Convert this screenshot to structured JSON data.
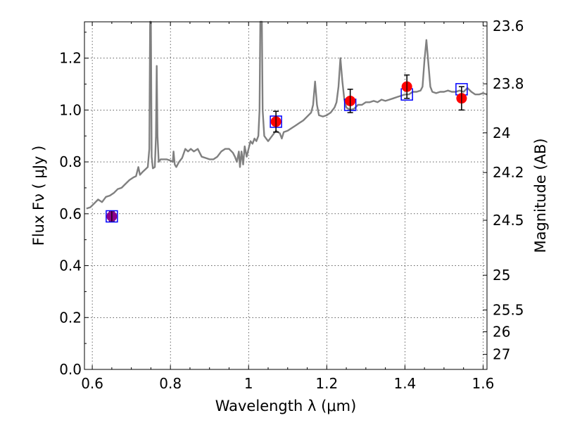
{
  "chart_data": {
    "type": "line",
    "title": "",
    "xlabel": "Wavelength  λ (μm)",
    "ylabel": "Flux  Fν  ( μJy )",
    "ylabel_right": "Magnitude (AB)",
    "xlim": [
      0.58,
      1.61
    ],
    "ylim": [
      0.0,
      1.34
    ],
    "grid": true,
    "x_ticks": [
      0.6,
      0.8,
      1.0,
      1.2,
      1.4,
      1.6
    ],
    "x_tick_labels": [
      "0.6",
      "0.8",
      "1",
      "1.2",
      "1.4",
      "1.6"
    ],
    "y_ticks": [
      0.0,
      0.2,
      0.4,
      0.6,
      0.8,
      1.0,
      1.2
    ],
    "y_tick_labels": [
      "0.0",
      "0.2",
      "0.4",
      "0.6",
      "0.8",
      "1.0",
      "1.2"
    ],
    "right_ticks": [
      {
        "mag": "23.6",
        "flux": 1.324
      },
      {
        "mag": "23.8",
        "flux": 1.101
      },
      {
        "mag": "24",
        "flux": 0.912
      },
      {
        "mag": "24.2",
        "flux": 0.759
      },
      {
        "mag": "24.5",
        "flux": 0.575
      },
      {
        "mag": "25",
        "flux": 0.363
      },
      {
        "mag": "25.5",
        "flux": 0.229
      },
      {
        "mag": "26",
        "flux": 0.145
      },
      {
        "mag": "27",
        "flux": 0.058
      }
    ],
    "series": [
      {
        "role": "model-spectrum",
        "color": "#808080",
        "points": [
          [
            0.585,
            0.62
          ],
          [
            0.595,
            0.625
          ],
          [
            0.605,
            0.64
          ],
          [
            0.615,
            0.655
          ],
          [
            0.625,
            0.645
          ],
          [
            0.635,
            0.665
          ],
          [
            0.645,
            0.67
          ],
          [
            0.655,
            0.68
          ],
          [
            0.665,
            0.695
          ],
          [
            0.675,
            0.7
          ],
          [
            0.685,
            0.715
          ],
          [
            0.695,
            0.73
          ],
          [
            0.705,
            0.74
          ],
          [
            0.712,
            0.745
          ],
          [
            0.718,
            0.78
          ],
          [
            0.722,
            0.75
          ],
          [
            0.728,
            0.76
          ],
          [
            0.735,
            0.77
          ],
          [
            0.742,
            0.78
          ],
          [
            0.746,
            0.85
          ],
          [
            0.748,
            1.34
          ],
          [
            0.75,
            1.34
          ],
          [
            0.752,
            0.82
          ],
          [
            0.755,
            0.775
          ],
          [
            0.76,
            0.78
          ],
          [
            0.763,
            0.9
          ],
          [
            0.765,
            1.17
          ],
          [
            0.767,
            0.9
          ],
          [
            0.77,
            0.8
          ],
          [
            0.775,
            0.81
          ],
          [
            0.78,
            0.81
          ],
          [
            0.79,
            0.81
          ],
          [
            0.8,
            0.805
          ],
          [
            0.806,
            0.8
          ],
          [
            0.808,
            0.84
          ],
          [
            0.811,
            0.79
          ],
          [
            0.815,
            0.78
          ],
          [
            0.822,
            0.8
          ],
          [
            0.83,
            0.815
          ],
          [
            0.838,
            0.85
          ],
          [
            0.845,
            0.84
          ],
          [
            0.852,
            0.85
          ],
          [
            0.86,
            0.84
          ],
          [
            0.87,
            0.85
          ],
          [
            0.88,
            0.82
          ],
          [
            0.89,
            0.815
          ],
          [
            0.9,
            0.81
          ],
          [
            0.91,
            0.81
          ],
          [
            0.92,
            0.82
          ],
          [
            0.93,
            0.84
          ],
          [
            0.94,
            0.85
          ],
          [
            0.95,
            0.85
          ],
          [
            0.96,
            0.835
          ],
          [
            0.965,
            0.82
          ],
          [
            0.97,
            0.8
          ],
          [
            0.975,
            0.84
          ],
          [
            0.978,
            0.78
          ],
          [
            0.982,
            0.84
          ],
          [
            0.986,
            0.79
          ],
          [
            0.99,
            0.86
          ],
          [
            0.995,
            0.82
          ],
          [
            1.0,
            0.85
          ],
          [
            1.005,
            0.88
          ],
          [
            1.01,
            0.87
          ],
          [
            1.015,
            0.89
          ],
          [
            1.02,
            0.88
          ],
          [
            1.025,
            0.9
          ],
          [
            1.028,
            1.0
          ],
          [
            1.03,
            1.34
          ],
          [
            1.034,
            1.34
          ],
          [
            1.036,
            1.0
          ],
          [
            1.04,
            0.9
          ],
          [
            1.045,
            0.89
          ],
          [
            1.05,
            0.88
          ],
          [
            1.06,
            0.9
          ],
          [
            1.07,
            0.92
          ],
          [
            1.08,
            0.91
          ],
          [
            1.085,
            0.89
          ],
          [
            1.09,
            0.915
          ],
          [
            1.1,
            0.92
          ],
          [
            1.11,
            0.93
          ],
          [
            1.12,
            0.94
          ],
          [
            1.13,
            0.95
          ],
          [
            1.14,
            0.96
          ],
          [
            1.15,
            0.975
          ],
          [
            1.16,
            0.99
          ],
          [
            1.165,
            1.02
          ],
          [
            1.17,
            1.11
          ],
          [
            1.175,
            1.02
          ],
          [
            1.18,
            0.98
          ],
          [
            1.19,
            0.975
          ],
          [
            1.2,
            0.98
          ],
          [
            1.21,
            0.99
          ],
          [
            1.22,
            1.01
          ],
          [
            1.225,
            1.03
          ],
          [
            1.23,
            1.09
          ],
          [
            1.235,
            1.2
          ],
          [
            1.24,
            1.11
          ],
          [
            1.245,
            1.04
          ],
          [
            1.25,
            1.01
          ],
          [
            1.26,
            1.0
          ],
          [
            1.27,
            1.005
          ],
          [
            1.28,
            1.02
          ],
          [
            1.29,
            1.02
          ],
          [
            1.3,
            1.03
          ],
          [
            1.31,
            1.03
          ],
          [
            1.32,
            1.035
          ],
          [
            1.33,
            1.03
          ],
          [
            1.34,
            1.04
          ],
          [
            1.35,
            1.035
          ],
          [
            1.36,
            1.04
          ],
          [
            1.37,
            1.045
          ],
          [
            1.38,
            1.05
          ],
          [
            1.39,
            1.055
          ],
          [
            1.4,
            1.06
          ],
          [
            1.41,
            1.06
          ],
          [
            1.42,
            1.07
          ],
          [
            1.43,
            1.07
          ],
          [
            1.44,
            1.075
          ],
          [
            1.445,
            1.09
          ],
          [
            1.45,
            1.19
          ],
          [
            1.455,
            1.27
          ],
          [
            1.46,
            1.18
          ],
          [
            1.465,
            1.09
          ],
          [
            1.47,
            1.07
          ],
          [
            1.48,
            1.065
          ],
          [
            1.49,
            1.07
          ],
          [
            1.5,
            1.07
          ],
          [
            1.51,
            1.075
          ],
          [
            1.52,
            1.07
          ],
          [
            1.53,
            1.07
          ],
          [
            1.54,
            1.075
          ],
          [
            1.55,
            1.07
          ],
          [
            1.56,
            1.085
          ],
          [
            1.57,
            1.07
          ],
          [
            1.58,
            1.06
          ],
          [
            1.59,
            1.06
          ],
          [
            1.6,
            1.065
          ],
          [
            1.61,
            1.06
          ]
        ]
      },
      {
        "role": "model-photometry",
        "marker": "open-square",
        "color": "#0000ff",
        "points": [
          [
            0.65,
            0.59
          ],
          [
            1.07,
            0.955
          ],
          [
            1.26,
            1.02
          ],
          [
            1.405,
            1.06
          ],
          [
            1.545,
            1.08
          ]
        ]
      },
      {
        "role": "observed-photometry",
        "marker": "filled-circle",
        "color": "#ff0000",
        "points": [
          {
            "x": 0.65,
            "y": 0.59,
            "err": 0.02,
            "color": "#8b008b"
          },
          {
            "x": 1.07,
            "y": 0.955,
            "err": 0.04
          },
          {
            "x": 1.26,
            "y": 1.035,
            "err": 0.045
          },
          {
            "x": 1.405,
            "y": 1.09,
            "err": 0.045
          },
          {
            "x": 1.545,
            "y": 1.045,
            "err": 0.045
          }
        ]
      }
    ]
  }
}
